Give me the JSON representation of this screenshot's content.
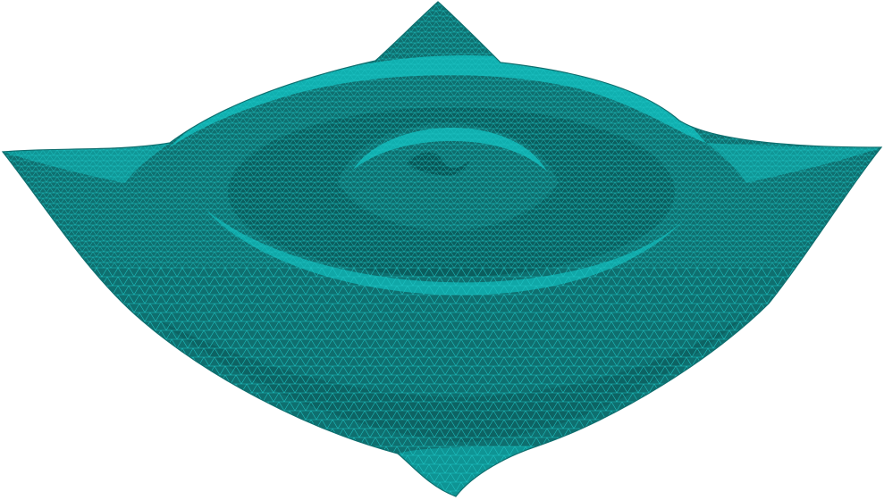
{
  "render": {
    "background_color": "#ffffff",
    "surface_fill_color": "#0f6f6f",
    "surface_highlight_color": "#11b2b2",
    "wireframe_color": "#1ec4c4",
    "representation": "surface-with-edges",
    "surface_shape": "radial-ripple"
  },
  "icons": {
    "surface": "mesh-surface-icon"
  }
}
